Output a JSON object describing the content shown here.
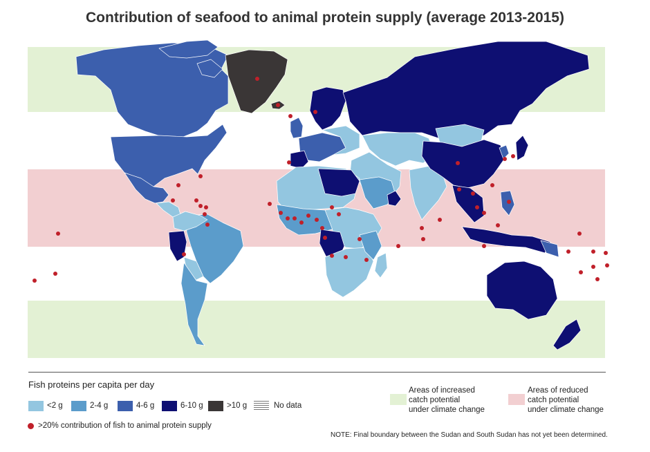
{
  "title": "Contribution of seafood to animal protein supply (average 2013-2015)",
  "colors": {
    "lt2": "#93c6e0",
    "2to4": "#5b9ccb",
    "4to6": "#3c5fad",
    "6to10": "#0e0f72",
    "gt10": "#3a3636",
    "nodata": "#ffffff",
    "dot": "#c0202a",
    "increase_zone": "#e3f1d4",
    "reduce_zone": "#f2cfd1"
  },
  "legend": {
    "title": "Fish proteins per capita per day",
    "categories": [
      {
        "label": "<2 g",
        "color_key": "lt2"
      },
      {
        "label": "2-4 g",
        "color_key": "2to4"
      },
      {
        "label": "4-6 g",
        "color_key": "4to6"
      },
      {
        "label": "6-10 g",
        "color_key": "6to10"
      },
      {
        "label": ">10 g",
        "color_key": "gt10"
      },
      {
        "label": "No data",
        "color_key": "nodata"
      }
    ],
    "dot_label": ">20% contribution of fish to animal protein supply",
    "zones": [
      {
        "label_lines": [
          "Areas of increased",
          "catch potential",
          "under climate change"
        ],
        "color_key": "increase_zone"
      },
      {
        "label_lines": [
          "Areas of reduced",
          "catch potential",
          "under climate change"
        ],
        "color_key": "reduce_zone"
      }
    ]
  },
  "note": "NOTE: Final boundary between the Sudan and South Sudan has not yet been determined."
}
